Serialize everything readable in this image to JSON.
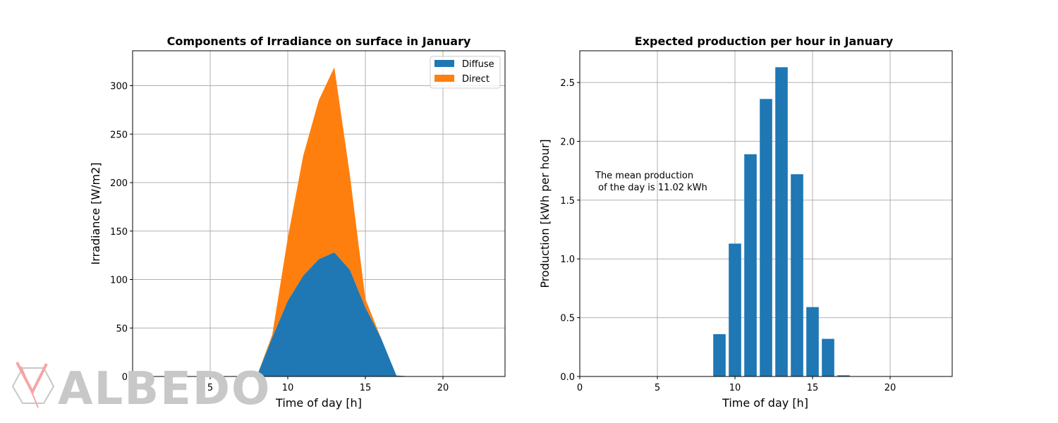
{
  "colors": {
    "diffuse": "#1f77b4",
    "direct": "#ff7f0e",
    "grid": "#b0b0b0",
    "watermark": "#c8c8c8",
    "watermark_accent": "#f4a6a6"
  },
  "watermark": {
    "text": "ALBEDO",
    "icon": "albedo-logo-icon"
  },
  "chart_data": [
    {
      "type": "area",
      "stacked": true,
      "title": "Components of Irradiance on surface in January",
      "xlabel": "Time of day [h]",
      "ylabel": "Irradiance [W/m2]",
      "xlim": [
        0,
        24
      ],
      "ylim": [
        0,
        336
      ],
      "xticks": [
        0,
        5,
        10,
        15,
        20
      ],
      "yticks": [
        0,
        50,
        100,
        150,
        200,
        250,
        300
      ],
      "grid": true,
      "legend": "top-right",
      "x": [
        0,
        1,
        2,
        3,
        4,
        5,
        6,
        7,
        8,
        9,
        10,
        11,
        12,
        13,
        14,
        15,
        16,
        17,
        18,
        19,
        20,
        21,
        22,
        23
      ],
      "series": [
        {
          "name": "Diffuse",
          "values": [
            0,
            0,
            0,
            0,
            0,
            0,
            0,
            0,
            0,
            40,
            78,
            104,
            121,
            128,
            110,
            71,
            40,
            1,
            0,
            0,
            0,
            0,
            0,
            0
          ]
        },
        {
          "name": "Direct",
          "values": [
            0,
            0,
            0,
            0,
            0,
            0,
            0,
            0,
            0,
            3,
            65,
            124,
            164,
            191,
            98,
            9,
            0,
            0,
            0,
            0,
            0,
            0,
            0,
            0
          ]
        }
      ]
    },
    {
      "type": "bar",
      "title": "Expected production per hour in January",
      "xlabel": "Time of day [h]",
      "ylabel": "Production [kWh per hour]",
      "xlim": [
        0,
        24
      ],
      "ylim": [
        0,
        2.77
      ],
      "xticks": [
        0,
        5,
        10,
        15,
        20
      ],
      "yticks": [
        0.0,
        0.5,
        1.0,
        1.5,
        2.0,
        2.5
      ],
      "grid": true,
      "x": [
        0,
        1,
        2,
        3,
        4,
        5,
        6,
        7,
        8,
        9,
        10,
        11,
        12,
        13,
        14,
        15,
        16,
        17,
        18,
        19,
        20,
        21,
        22,
        23
      ],
      "values": [
        0,
        0,
        0,
        0,
        0,
        0,
        0,
        0,
        0,
        0.36,
        1.13,
        1.89,
        2.36,
        2.63,
        1.72,
        0.59,
        0.32,
        0.01,
        0,
        0,
        0,
        0,
        0,
        0
      ],
      "annotation": [
        "The mean production",
        " of the day is 11.02 kWh"
      ]
    }
  ]
}
